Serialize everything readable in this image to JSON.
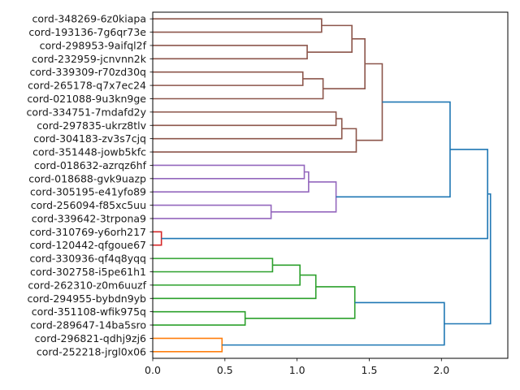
{
  "chart_data": {
    "type": "dendrogram",
    "orientation": "left",
    "title": "",
    "xlabel": "",
    "ylabel": "",
    "xlim": [
      0,
      2.46
    ],
    "x_ticks": [
      0.0,
      0.5,
      1.0,
      1.5,
      2.0
    ],
    "x_tick_labels": [
      "0.0",
      "0.5",
      "1.0",
      "1.5",
      "2.0"
    ],
    "grid": false,
    "leaves": [
      "cord-348269-6z0kiapa",
      "cord-193136-7g6qr73e",
      "cord-298953-9aifql2f",
      "cord-232959-jcnvnn2k",
      "cord-339309-r70zd30q",
      "cord-265178-q7x7ec24",
      "cord-021088-9u3kn9ge",
      "cord-334751-7mdafd2y",
      "cord-297835-ukrz8tlv",
      "cord-304183-zv3s7cjq",
      "cord-351448-jowb5kfc",
      "cord-018632-azrqz6hf",
      "cord-018688-gvk9uazp",
      "cord-305195-e41yfo89",
      "cord-256094-f85xc5uu",
      "cord-339642-3trpona9",
      "cord-310769-y6orh217",
      "cord-120442-qfgoue67",
      "cord-330936-qf4q8yqq",
      "cord-302758-i5pe61h1",
      "cord-262310-z0m6uuzf",
      "cord-294955-bybdn9yb",
      "cord-351108-wfik975q",
      "cord-289647-14ba5sro",
      "cord-296821-qdhj9zj6",
      "cord-252218-jrgl0x06"
    ],
    "colors": {
      "brown": "#8c564b",
      "purple": "#9467bd",
      "red": "#d62728",
      "green": "#2ca02c",
      "orange": "#ff7f0e",
      "above_threshold": "#1f77b4"
    },
    "merges": [
      {
        "id": "m1",
        "left": "L0",
        "right": "L1",
        "height": 1.17,
        "color": "brown"
      },
      {
        "id": "m2",
        "left": "L2",
        "right": "L3",
        "height": 1.07,
        "color": "brown"
      },
      {
        "id": "m3",
        "left": "m1",
        "right": "m2",
        "height": 1.38,
        "color": "brown"
      },
      {
        "id": "m4",
        "left": "L4",
        "right": "L5",
        "height": 1.04,
        "color": "brown"
      },
      {
        "id": "m5",
        "left": "m4",
        "right": "L6",
        "height": 1.18,
        "color": "brown"
      },
      {
        "id": "m6",
        "left": "m3",
        "right": "m5",
        "height": 1.47,
        "color": "brown"
      },
      {
        "id": "m7",
        "left": "L7",
        "right": "L8",
        "height": 1.27,
        "color": "brown"
      },
      {
        "id": "m8",
        "left": "m7",
        "right": "L9",
        "height": 1.31,
        "color": "brown"
      },
      {
        "id": "m9",
        "left": "m8",
        "right": "L10",
        "height": 1.41,
        "color": "brown"
      },
      {
        "id": "m10",
        "left": "m6",
        "right": "m9",
        "height": 1.59,
        "color": "brown"
      },
      {
        "id": "m11",
        "left": "L11",
        "right": "L12",
        "height": 1.05,
        "color": "purple"
      },
      {
        "id": "m12",
        "left": "m11",
        "right": "L13",
        "height": 1.08,
        "color": "purple"
      },
      {
        "id": "m13",
        "left": "L14",
        "right": "L15",
        "height": 0.82,
        "color": "purple"
      },
      {
        "id": "m14",
        "left": "m12",
        "right": "m13",
        "height": 1.27,
        "color": "purple"
      },
      {
        "id": "m15",
        "left": "m10",
        "right": "m14",
        "height": 2.06,
        "color": "above_threshold"
      },
      {
        "id": "m16",
        "left": "L16",
        "right": "L17",
        "height": 0.06,
        "color": "red"
      },
      {
        "id": "m17",
        "left": "m15",
        "right": "m16",
        "height": 2.32,
        "color": "above_threshold"
      },
      {
        "id": "m18",
        "left": "L18",
        "right": "L19",
        "height": 0.83,
        "color": "green"
      },
      {
        "id": "m19",
        "left": "m18",
        "right": "L20",
        "height": 1.02,
        "color": "green"
      },
      {
        "id": "m20",
        "left": "m19",
        "right": "L21",
        "height": 1.13,
        "color": "green"
      },
      {
        "id": "m21",
        "left": "L22",
        "right": "L23",
        "height": 0.64,
        "color": "green"
      },
      {
        "id": "m22",
        "left": "m20",
        "right": "m21",
        "height": 1.4,
        "color": "green"
      },
      {
        "id": "m23",
        "left": "L24",
        "right": "L25",
        "height": 0.48,
        "color": "orange"
      },
      {
        "id": "m24",
        "left": "m22",
        "right": "m23",
        "height": 2.02,
        "color": "above_threshold"
      },
      {
        "id": "m25",
        "left": "m17",
        "right": "m24",
        "height": 2.34,
        "color": "above_threshold"
      }
    ]
  }
}
